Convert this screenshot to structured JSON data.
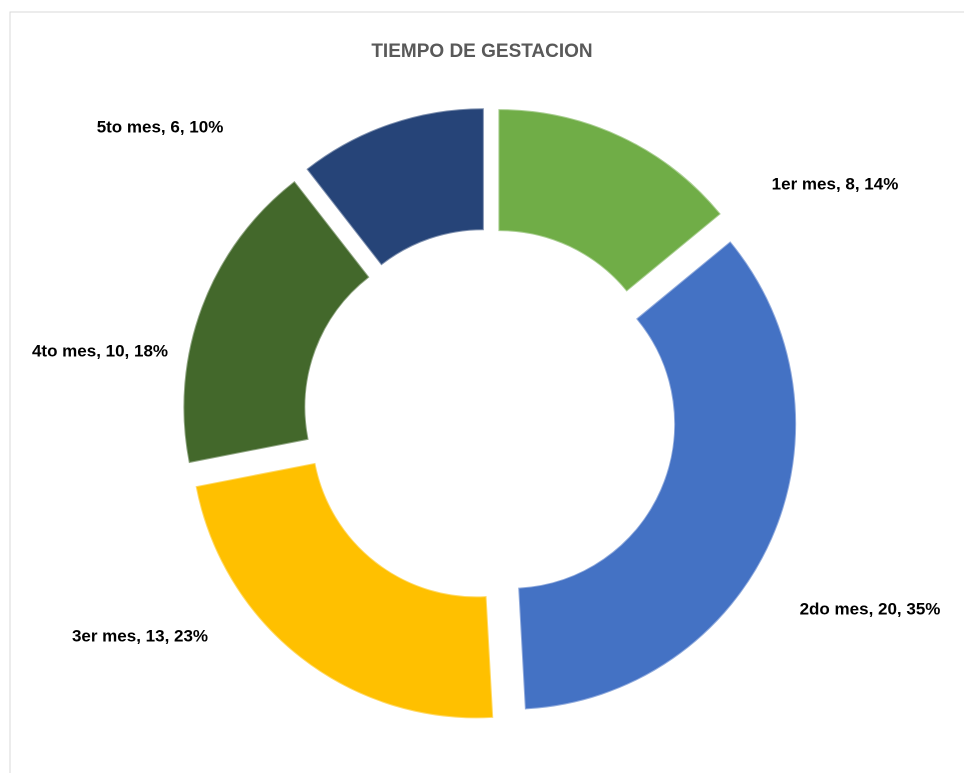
{
  "chart_data": {
    "type": "donut",
    "title": "TIEMPO DE GESTACION",
    "categories": [
      "1er mes",
      "2do mes",
      "3er mes",
      "4to mes",
      "5to mes"
    ],
    "values": [
      8,
      20,
      13,
      10,
      6
    ],
    "value_labels": [
      "1er mes, 8, 14%",
      "2do mes, 20, 35%",
      "3er mes, 13, 23%",
      "4to mes, 10, 18%",
      "5to mes, 6, 10%"
    ],
    "colors": [
      "#70ad47",
      "#4472c4",
      "#ffc000",
      "#43682b",
      "#264478"
    ]
  }
}
